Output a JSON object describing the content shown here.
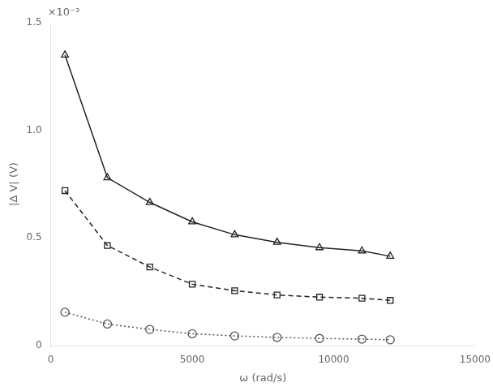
{
  "chart_data": {
    "type": "line",
    "xlabel": "ω (rad/s)",
    "ylabel": "|Δ V| (V)",
    "x": [
      500,
      2000,
      3500,
      5000,
      6500,
      8000,
      9500,
      11000,
      12000
    ],
    "series": [
      {
        "color": "#222222",
        "marker": "triangle",
        "line_style": "solid",
        "values": [
          0.00135,
          0.00078,
          0.000665,
          0.000575,
          0.000515,
          0.00048,
          0.000455,
          0.00044,
          0.000415
        ]
      },
      {
        "color": "#222222",
        "marker": "square",
        "line_style": "dashed",
        "values": [
          0.00072,
          0.000465,
          0.000365,
          0.000285,
          0.000255,
          0.000235,
          0.000225,
          0.00022,
          0.00021
        ]
      },
      {
        "color": "#555555",
        "marker": "circle",
        "line_style": "dotted",
        "values": [
          0.000155,
          0.0001,
          7.5e-05,
          5.5e-05,
          4.5e-05,
          3.8e-05,
          3.3e-05,
          3e-05,
          2.7e-05
        ]
      }
    ],
    "xlim": [
      0,
      15000
    ],
    "xticks": [
      0,
      5000,
      10000,
      15000
    ],
    "ylim": [
      0,
      0.0015
    ],
    "yticks": [
      0,
      {
        "value": 0.0005,
        "label": "0.5"
      },
      {
        "value": 0.001,
        "label": "1.0"
      },
      {
        "value": 0.0015,
        "label": "1.5"
      }
    ],
    "annotations": [
      {
        "text": "×10⁻³"
      }
    ],
    "grid": false
  }
}
